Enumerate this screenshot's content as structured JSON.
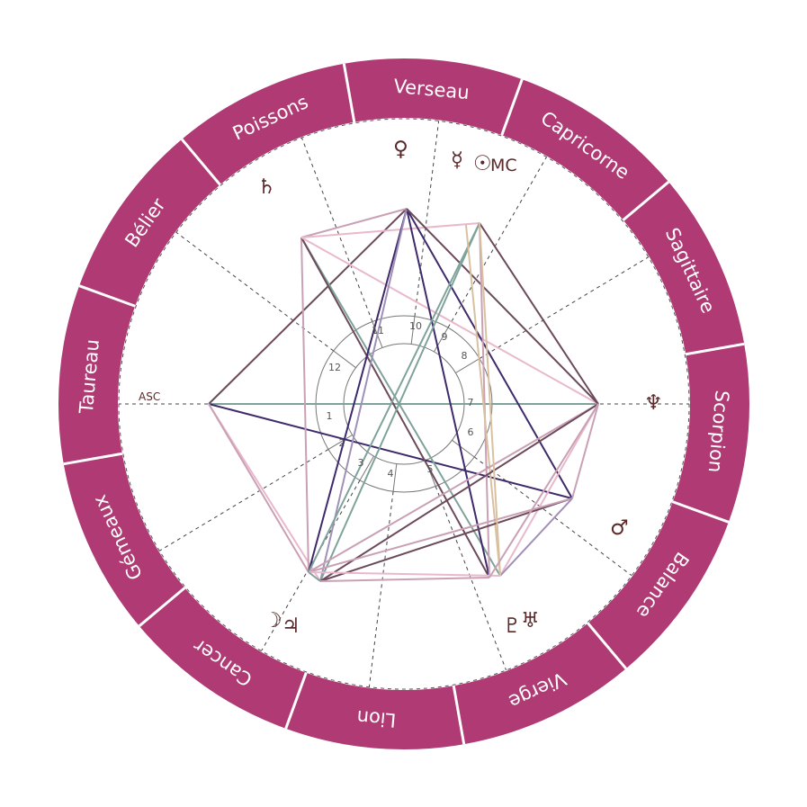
{
  "colors": {
    "ring": "#b03a74",
    "ring_divider": "#ffffff",
    "glyph": "#5a2a2a",
    "house_line": "#444444",
    "inner_circle": "#555555"
  },
  "zodiac_signs": [
    "Verseau",
    "Capricorne",
    "Sagittaire",
    "Scorpion",
    "Balance",
    "Vierge",
    "Lion",
    "Cancer",
    "Gémeaux",
    "Taureau",
    "Bélier",
    "Poissons"
  ],
  "house_numbers": [
    "1",
    "2",
    "3",
    "4",
    "5",
    "6",
    "7",
    "8",
    "9",
    "10",
    "11",
    "12"
  ],
  "axis_labels": {
    "asc": "ASC",
    "mc": "MC"
  },
  "planets": [
    {
      "id": "venus",
      "symbol": "♀",
      "icon": "venus-icon"
    },
    {
      "id": "mercury",
      "symbol": "☿",
      "icon": "mercury-icon"
    },
    {
      "id": "sun",
      "symbol": "☉",
      "icon": "sun-icon"
    },
    {
      "id": "saturn",
      "symbol": "♄",
      "icon": "saturn-icon"
    },
    {
      "id": "neptune",
      "symbol": "♆",
      "icon": "neptune-icon"
    },
    {
      "id": "mars",
      "symbol": "♂",
      "icon": "mars-icon"
    },
    {
      "id": "pluto",
      "symbol": "♇",
      "icon": "pluto-icon"
    },
    {
      "id": "uranus",
      "symbol": "♅",
      "icon": "uranus-icon"
    },
    {
      "id": "moon",
      "symbol": "☽",
      "icon": "moon-icon"
    },
    {
      "id": "jupiter",
      "symbol": "♃",
      "icon": "jupiter-icon"
    }
  ],
  "aspect_colors": [
    "#3e2a6b",
    "#6b4a5a",
    "#7fa39a",
    "#c9a0b4",
    "#e9b8cc",
    "#a090b8",
    "#d9c0a0"
  ]
}
